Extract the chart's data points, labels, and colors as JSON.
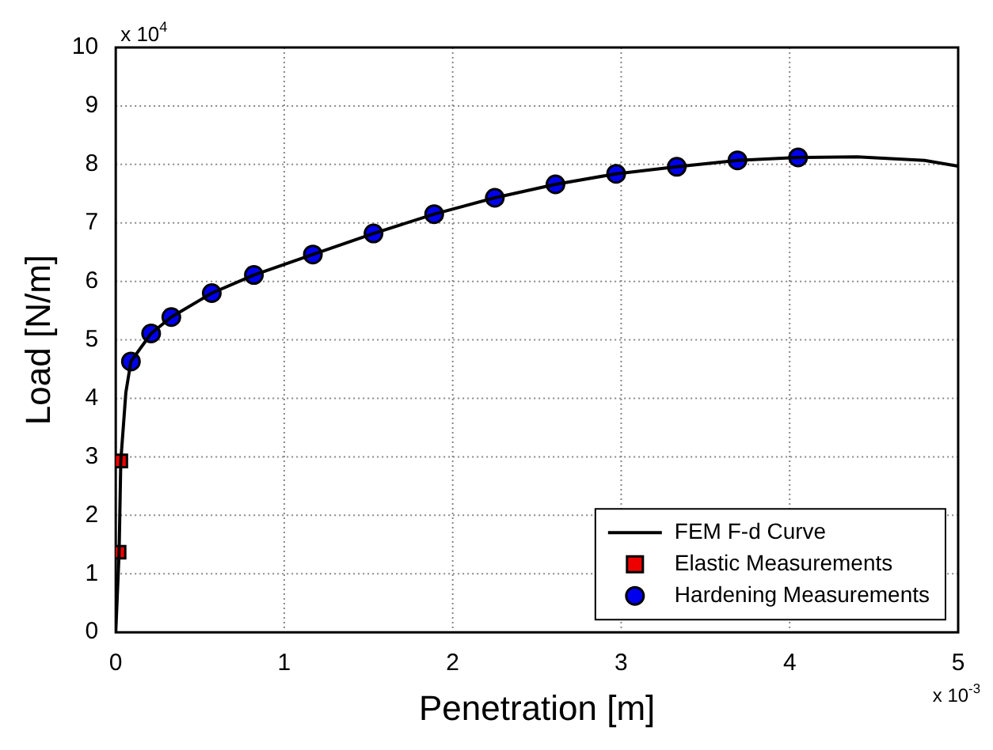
{
  "chart_data": {
    "type": "line",
    "xlabel": "Penetration [m]",
    "ylabel": "Load [N/m]",
    "xlim": [
      0,
      5
    ],
    "xticks": [
      0,
      1,
      2,
      3,
      4,
      5
    ],
    "ylim": [
      0,
      10
    ],
    "yticks": [
      0,
      1,
      2,
      3,
      4,
      5,
      6,
      7,
      8,
      9,
      10
    ],
    "grid": true,
    "legend": "bottom right",
    "annotations": [
      "x 10$^{4}$",
      "x 10$^{-3}$"
    ],
    "series": [
      {
        "name": "FEM F-d Curve",
        "type": "line",
        "color": "#000000",
        "marker": "none",
        "line_style": "solid",
        "x": [
          0,
          0.02,
          0.03,
          0.06,
          0.09,
          0.21,
          0.33,
          0.57,
          0.82,
          1.17,
          1.53,
          1.89,
          2.25,
          2.61,
          2.97,
          3.33,
          3.69,
          4.05,
          4.4,
          4.8,
          5
        ],
        "values": [
          0,
          1.37,
          2.93,
          4.1,
          4.63,
          5.11,
          5.39,
          5.8,
          6.11,
          6.46,
          6.82,
          7.15,
          7.43,
          7.66,
          7.84,
          7.96,
          8.07,
          8.12,
          8.13,
          8.07,
          7.97
        ]
      },
      {
        "name": "Elastic Measurements",
        "type": "scatter",
        "color": "#ee0000",
        "marker": "square",
        "x": [
          0.02,
          0.03
        ],
        "values": [
          1.37,
          2.93
        ]
      },
      {
        "name": "Hardening Measurements",
        "type": "scatter",
        "color": "#0000ee",
        "marker": "circle",
        "x": [
          0.09,
          0.21,
          0.33,
          0.57,
          0.82,
          1.17,
          1.53,
          1.89,
          2.25,
          2.61,
          2.97,
          3.33,
          3.69,
          4.05
        ],
        "values": [
          4.63,
          5.11,
          5.39,
          5.8,
          6.11,
          6.46,
          6.82,
          7.15,
          7.43,
          7.66,
          7.84,
          7.96,
          8.07,
          8.12
        ]
      }
    ]
  }
}
